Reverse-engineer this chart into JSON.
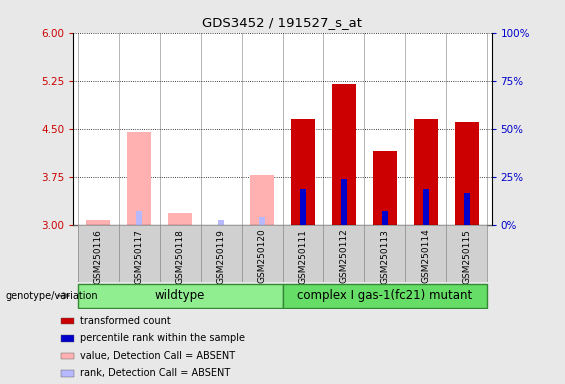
{
  "title": "GDS3452 / 191527_s_at",
  "samples": [
    "GSM250116",
    "GSM250117",
    "GSM250118",
    "GSM250119",
    "GSM250120",
    "GSM250111",
    "GSM250112",
    "GSM250113",
    "GSM250114",
    "GSM250115"
  ],
  "red_values": [
    3.08,
    3.15,
    3.08,
    3.05,
    3.1,
    4.65,
    5.2,
    4.15,
    4.65,
    4.6
  ],
  "blue_values": [
    null,
    3.22,
    null,
    3.08,
    3.12,
    3.55,
    3.72,
    3.22,
    3.55,
    3.5
  ],
  "pink_values": [
    3.08,
    4.45,
    3.18,
    null,
    3.78,
    null,
    null,
    null,
    null,
    null
  ],
  "lightblue_values": [
    null,
    3.22,
    null,
    3.08,
    3.12,
    null,
    null,
    null,
    null,
    null
  ],
  "absent_flags": [
    true,
    true,
    true,
    true,
    true,
    false,
    false,
    false,
    false,
    false
  ],
  "ylim": [
    3.0,
    6.0
  ],
  "yticks_left": [
    3.0,
    3.75,
    4.5,
    5.25,
    6.0
  ],
  "yticks_right": [
    0,
    25,
    50,
    75,
    100
  ],
  "ylabel_left_color": "#cc0000",
  "ylabel_right_color": "#0000cc",
  "bar_width": 0.6,
  "bg_color": "#e8e8e8",
  "plot_bg": "#ffffff",
  "red_color": "#cc0000",
  "blue_color": "#0000cc",
  "pink_color": "#ffb0b0",
  "lightblue_color": "#b8b8ff",
  "group1_color": "#90ee90",
  "group2_color": "#66dd66",
  "legend_items": [
    [
      "transformed count",
      "#cc0000"
    ],
    [
      "percentile rank within the sample",
      "#0000cc"
    ],
    [
      "value, Detection Call = ABSENT",
      "#ffb0b0"
    ],
    [
      "rank, Detection Call = ABSENT",
      "#b8b8ff"
    ]
  ],
  "wildtype_label": "wildtype",
  "mutant_label": "complex I gas-1(fc21) mutant",
  "genotype_label": "genotype/variation"
}
